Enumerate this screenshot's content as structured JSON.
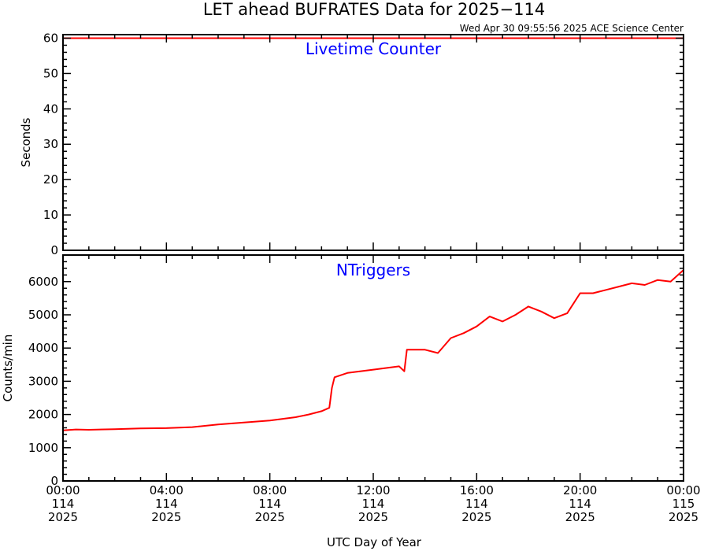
{
  "title": "LET ahead BUFRATES Data for 2025−114",
  "timestamp": "Wed Apr 30 09:55:56 2025 ACE Science Center",
  "xlabel": "UTC Day of Year",
  "colors": {
    "series": "#ff0000",
    "panel_title": "#0000ff",
    "axes": "#000000"
  },
  "x_ticks": [
    {
      "hour": 0,
      "time": "00:00",
      "doy": "114",
      "year": "2025"
    },
    {
      "hour": 4,
      "time": "04:00",
      "doy": "114",
      "year": "2025"
    },
    {
      "hour": 8,
      "time": "08:00",
      "doy": "114",
      "year": "2025"
    },
    {
      "hour": 12,
      "time": "12:00",
      "doy": "114",
      "year": "2025"
    },
    {
      "hour": 16,
      "time": "16:00",
      "doy": "114",
      "year": "2025"
    },
    {
      "hour": 20,
      "time": "20:00",
      "doy": "114",
      "year": "2025"
    },
    {
      "hour": 24,
      "time": "00:00",
      "doy": "115",
      "year": "2025"
    }
  ],
  "chart_data": [
    {
      "type": "line",
      "title": "Livetime Counter",
      "ylabel": "Seconds",
      "xlim": [
        0,
        24
      ],
      "ylim": [
        0,
        61
      ],
      "y_ticks": [
        0,
        10,
        20,
        30,
        40,
        50,
        60
      ],
      "series": [
        {
          "x": [
            0,
            24
          ],
          "y": [
            60,
            60
          ]
        }
      ]
    },
    {
      "type": "line",
      "title": "NTriggers",
      "ylabel": "Counts/min",
      "xlim": [
        0,
        24
      ],
      "ylim": [
        0,
        6800
      ],
      "y_ticks": [
        0,
        1000,
        2000,
        3000,
        4000,
        5000,
        6000
      ],
      "series": [
        {
          "x": [
            0,
            0.5,
            1,
            2,
            3,
            4,
            5,
            6,
            7,
            8,
            9,
            9.5,
            10,
            10.3,
            10.4,
            10.5,
            11,
            12,
            13,
            13.2,
            13.3,
            14,
            14.5,
            15,
            15.5,
            16,
            16.5,
            17,
            17.5,
            18,
            18.5,
            19,
            19.5,
            20,
            20.5,
            21,
            21.5,
            22,
            22.5,
            23,
            23.5,
            24
          ],
          "y": [
            1520,
            1550,
            1540,
            1560,
            1580,
            1590,
            1620,
            1700,
            1760,
            1820,
            1920,
            2000,
            2100,
            2200,
            2800,
            3120,
            3250,
            3350,
            3450,
            3300,
            3950,
            3950,
            3850,
            4300,
            4450,
            4650,
            4950,
            4800,
            5000,
            5250,
            5100,
            4900,
            5050,
            5650,
            5650,
            5750,
            5850,
            5950,
            5900,
            6050,
            6000,
            6350
          ]
        }
      ]
    }
  ]
}
